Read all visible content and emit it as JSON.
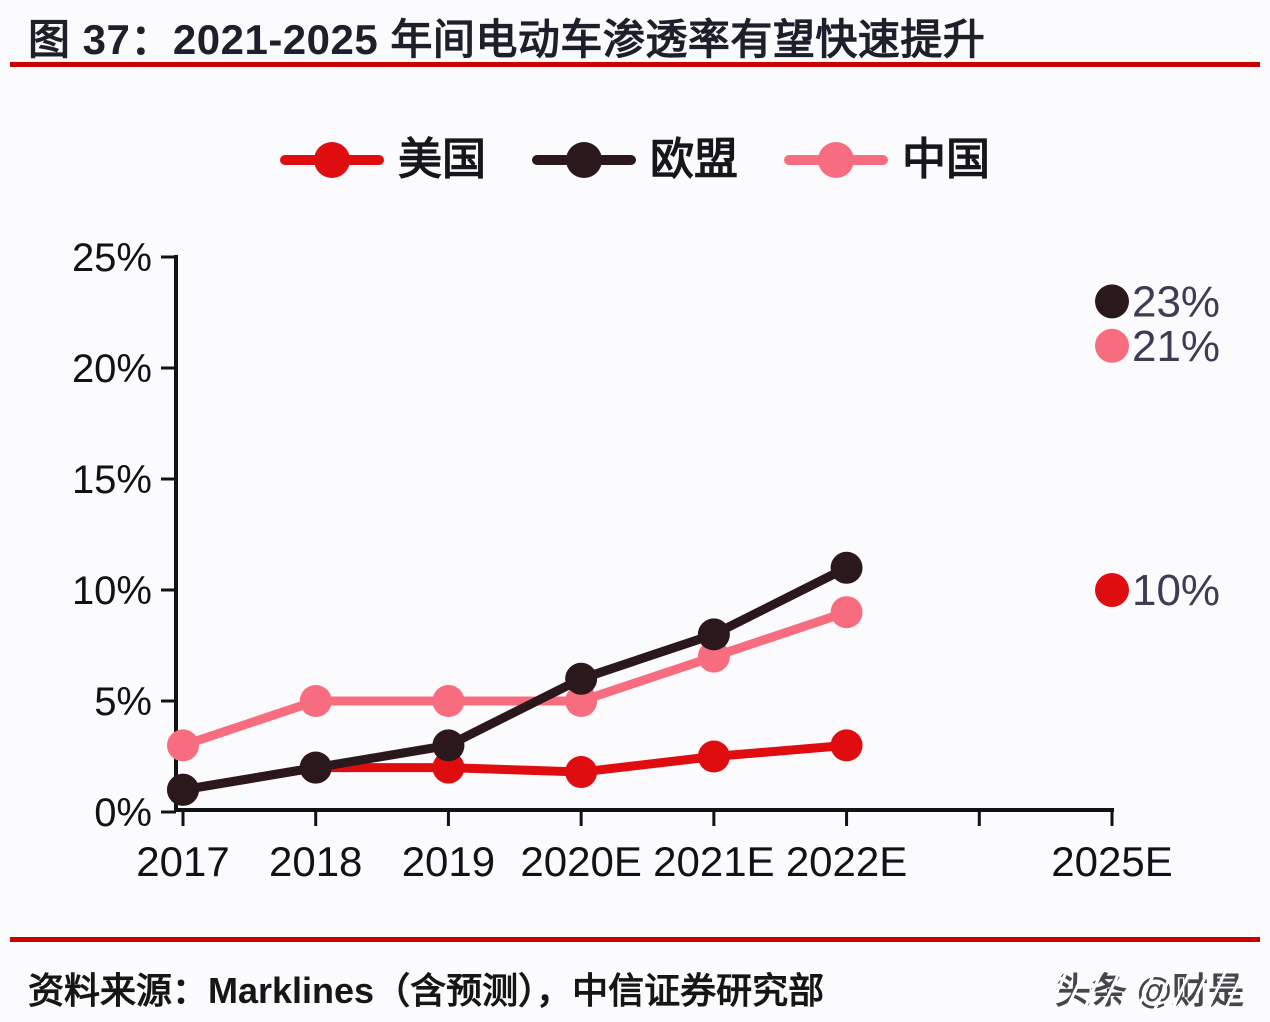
{
  "page": {
    "title": "图 37：2021-2025 年间电动车渗透率有望快速提升",
    "source_text": "资料来源：Marklines（含预测），中信证券研究部",
    "watermark": "头条 @财是",
    "colors": {
      "rule_red": "#cb0000",
      "title_text": "#1d1f2a",
      "axis": "#121214",
      "tick_label": "#121214",
      "value_label": "#3d3c54",
      "background": "#fbfafc"
    }
  },
  "chart_data": {
    "type": "line",
    "title": "2021-2025 年间电动车渗透率有望快速提升",
    "categories": [
      "2017",
      "2018",
      "2019",
      "2020E",
      "2021E",
      "2022E",
      "2025E"
    ],
    "x_axis_units": [
      0,
      1,
      2,
      3,
      4,
      5,
      7
    ],
    "x_tick_units": [
      0,
      1,
      2,
      3,
      4,
      5,
      6,
      7
    ],
    "y_ticks": [
      "0%",
      "5%",
      "10%",
      "15%",
      "20%",
      "25%"
    ],
    "y_tick_values": [
      0,
      5,
      10,
      15,
      20,
      25
    ],
    "ylim": [
      0,
      25
    ],
    "grid": false,
    "legend_position": "top",
    "draw_order": [
      2,
      0,
      1
    ],
    "series": [
      {
        "name": "美国",
        "color": "#e00d10",
        "values": [
          1,
          2,
          2,
          1.8,
          2.5,
          3,
          10
        ],
        "final_label": "10%"
      },
      {
        "name": "欧盟",
        "color": "#2b181c",
        "values": [
          1,
          2,
          3,
          6,
          8,
          11,
          23
        ],
        "final_label": "23%"
      },
      {
        "name": "中国",
        "color": "#f76d7f",
        "values": [
          3,
          5,
          5,
          5,
          7,
          9,
          21
        ],
        "final_label": "21%"
      }
    ]
  }
}
